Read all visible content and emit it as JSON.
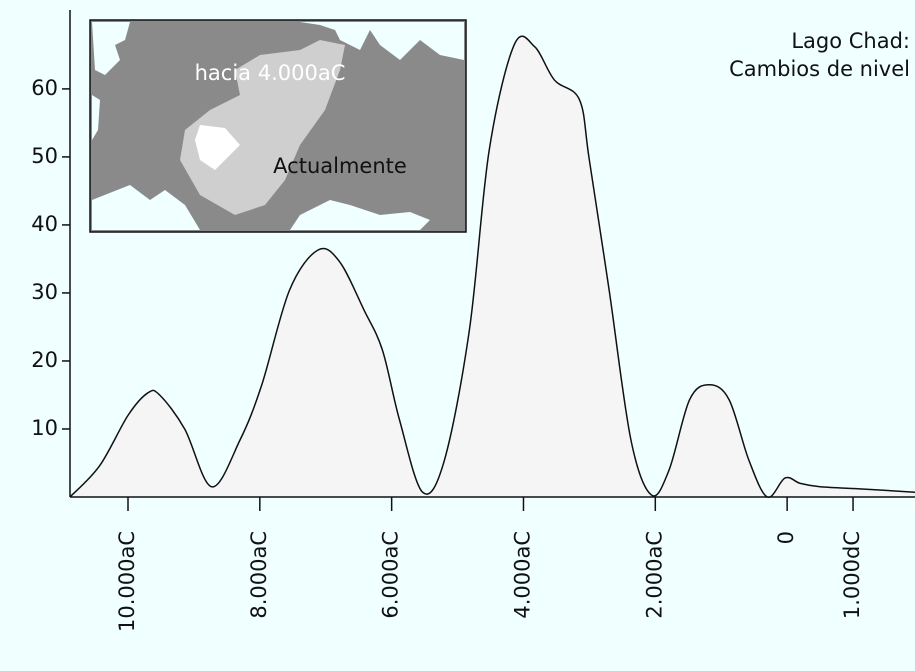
{
  "chart_data": {
    "type": "area",
    "title": "Lago Chad:",
    "subtitle": "Cambios de nivel",
    "annotations": [
      "hacia 4.000aC",
      "Actualmente"
    ],
    "x": [
      -10880,
      -10430,
      -10000,
      -9700,
      -9520,
      -9140,
      -8730,
      -8300,
      -7970,
      -7550,
      -7120,
      -6790,
      -6420,
      -6140,
      -5880,
      -5530,
      -5200,
      -4820,
      -4520,
      -4140,
      -3830,
      -3530,
      -3150,
      -3000,
      -2700,
      -2370,
      -2060,
      -1790,
      -1480,
      -1180,
      -880,
      -580,
      -300,
      -30,
      200,
      500,
      1100,
      1940
    ],
    "series": [
      {
        "color": "#f5f5f5",
        "values": [
          0,
          4.6,
          12,
          15.3,
          15,
          10,
          1.5,
          8.4,
          16.5,
          30.4,
          36.3,
          34.6,
          27.5,
          21.6,
          11.3,
          0.7,
          5.4,
          24.6,
          51,
          66.5,
          66.2,
          61.3,
          58.4,
          49.5,
          30.4,
          8.4,
          0.3,
          4,
          14.3,
          16.5,
          14.3,
          5.4,
          0,
          2.8,
          2,
          1.5,
          1.2,
          0.7
        ]
      }
    ],
    "xlim": [
      -10880,
      1940
    ],
    "xticks": [
      {
        "value": -10000,
        "label": "10.000aC"
      },
      {
        "value": -8000,
        "label": "8.000aC"
      },
      {
        "value": -6000,
        "label": "6.000aC"
      },
      {
        "value": -4000,
        "label": "4.000aC"
      },
      {
        "value": -2000,
        "label": "2.000aC"
      },
      0,
      {
        "value": 1000,
        "label": "1.000dC"
      }
    ],
    "ylim": [
      0,
      71.6
    ],
    "yticks": [
      10,
      20,
      30,
      40,
      50,
      60
    ]
  }
}
